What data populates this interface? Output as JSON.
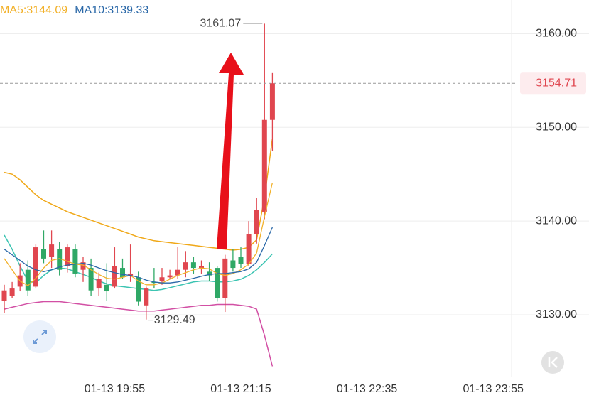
{
  "chart_data": {
    "type": "candlestick",
    "categories": [
      null,
      null,
      null,
      null,
      null,
      null,
      null,
      null,
      null,
      null,
      null,
      null,
      null,
      null,
      "01-13 19:55",
      null,
      null,
      null,
      null,
      null,
      null,
      null,
      null,
      null,
      null,
      null,
      null,
      null,
      null,
      null,
      "01-13 21:15",
      null,
      null,
      null,
      null,
      null,
      null,
      null,
      null,
      null,
      null,
      null,
      null,
      null,
      null,
      null,
      "01-13 22:35",
      null,
      null,
      null,
      null,
      null,
      null,
      null,
      null,
      null,
      null,
      null,
      null,
      null,
      null,
      null,
      "01-13 23:55",
      null
    ],
    "open": [
      3131.5,
      3132.0,
      3133.0,
      3134.8,
      3133.0,
      3137.0,
      3136.2,
      3137.0,
      3135.2,
      3137.0,
      3134.8,
      3135.0,
      3132.8,
      3133.2,
      3133.0,
      3135.0,
      3134.2,
      3134.0,
      3131.0,
      3133.5,
      3133.6,
      3134.0,
      3134.2,
      3134.8,
      3135.6,
      3135.0,
      3134.6,
      3135.0,
      3131.8,
      3135.8,
      3136.2,
      3135.4,
      3138.6,
      3141.0,
      3150.8,
      null,
      null,
      null,
      null,
      null,
      null,
      null,
      null,
      null,
      null,
      null,
      null,
      null,
      null,
      null,
      null,
      null,
      null,
      null,
      null,
      null,
      null,
      null,
      null,
      null,
      null,
      null,
      null,
      null
    ],
    "high": [
      3133.2,
      3133.5,
      3135.5,
      3135.8,
      3137.5,
      3139.0,
      3139.0,
      3137.8,
      3137.5,
      3137.5,
      3136.2,
      3136.0,
      3134.5,
      3135.5,
      3137.2,
      3136.0,
      3137.5,
      3134.6,
      3133.0,
      3135.0,
      3135.0,
      3134.8,
      3137.2,
      3136.8,
      3136.2,
      3135.8,
      3135.6,
      3135.2,
      3136.4,
      3137.0,
      3137.2,
      3140.0,
      3142.5,
      3161.07,
      3155.8,
      null,
      null,
      null,
      null,
      null,
      null,
      null,
      null,
      null,
      null,
      null,
      null,
      null,
      null,
      null,
      null,
      null,
      null,
      null,
      null,
      null,
      null,
      null,
      null,
      null,
      null,
      null,
      null,
      null
    ],
    "low": [
      3130.2,
      3131.8,
      3132.5,
      3132.0,
      3132.8,
      3135.5,
      3135.0,
      3134.2,
      3134.5,
      3134.0,
      3133.5,
      3132.0,
      3132.0,
      3131.5,
      3132.8,
      3133.8,
      3133.5,
      3131.0,
      3129.49,
      3132.8,
      3133.2,
      3133.8,
      3133.8,
      3134.0,
      3134.4,
      3134.4,
      3133.6,
      3131.4,
      3130.3,
      3134.6,
      3135.0,
      3135.2,
      3137.6,
      3140.2,
      3147.5,
      null,
      null,
      null,
      null,
      null,
      null,
      null,
      null,
      null,
      null,
      null,
      null,
      null,
      null,
      null,
      null,
      null,
      null,
      null,
      null,
      null,
      null,
      null,
      null,
      null,
      null,
      null,
      null,
      null
    ],
    "close": [
      3132.6,
      3132.8,
      3134.2,
      3132.6,
      3137.2,
      3136.0,
      3137.5,
      3134.8,
      3137.2,
      3134.4,
      3135.6,
      3132.6,
      3133.8,
      3132.5,
      3135.2,
      3134.0,
      3134.4,
      3131.4,
      3132.8,
      3133.4,
      3134.0,
      3134.2,
      3134.8,
      3135.6,
      3135.0,
      3135.2,
      3134.2,
      3131.8,
      3136.0,
      3135.0,
      3135.4,
      3138.6,
      3141.2,
      3150.8,
      3154.71,
      null,
      null,
      null,
      null,
      null,
      null,
      null,
      null,
      null,
      null,
      null,
      null,
      null,
      null,
      null,
      null,
      null,
      null,
      null,
      null,
      null,
      null,
      null,
      null,
      null,
      null,
      null,
      null,
      null
    ],
    "up_color": "#e0464f",
    "down_color": "#2fa866",
    "series": [
      {
        "name": "MA5:3144.09",
        "color": "#f2b12a",
        "values": [
          3136.0,
          3134.8,
          3133.6,
          3133.1,
          3133.9,
          3135.0,
          3135.8,
          3136.0,
          3135.7,
          3135.4,
          3135.3,
          3134.8,
          3134.3,
          3133.9,
          3133.8,
          3134.0,
          3134.2,
          3133.6,
          3133.2,
          3133.2,
          3133.4,
          3133.8,
          3134.2,
          3134.5,
          3134.8,
          3135.0,
          3134.9,
          3134.4,
          3134.2,
          3134.4,
          3134.8,
          3135.4,
          3136.6,
          3140.5,
          3144.09,
          null,
          null,
          null,
          null,
          null,
          null,
          null,
          null,
          null,
          null,
          null,
          null,
          null,
          null,
          null,
          null,
          null,
          null,
          null,
          null,
          null,
          null,
          null,
          null,
          null,
          null,
          null,
          null,
          null
        ]
      },
      {
        "name": "MA10:3139.33",
        "color": "#2a68a8",
        "values": [
          3137.0,
          3136.4,
          3135.8,
          3135.2,
          3134.8,
          3134.6,
          3134.8,
          3135.1,
          3135.3,
          3135.4,
          3135.5,
          3135.3,
          3135.0,
          3134.7,
          3134.5,
          3134.3,
          3134.2,
          3134.0,
          3133.7,
          3133.5,
          3133.4,
          3133.4,
          3133.5,
          3133.7,
          3133.9,
          3134.1,
          3134.3,
          3134.4,
          3134.4,
          3134.5,
          3134.6,
          3134.9,
          3135.6,
          3137.4,
          3139.33,
          null,
          null,
          null,
          null,
          null,
          null,
          null,
          null,
          null,
          null,
          null,
          null,
          null,
          null,
          null,
          null,
          null,
          null,
          null,
          null,
          null,
          null,
          null,
          null,
          null,
          null,
          null,
          null,
          null
        ]
      }
    ],
    "bands": [
      {
        "color": "#f0a818",
        "values": [
          3145.2,
          3145.0,
          3144.4,
          3143.6,
          3142.8,
          3142.2,
          3141.8,
          3141.4,
          3141.0,
          3140.7,
          3140.4,
          3140.1,
          3139.8,
          3139.5,
          3139.2,
          3138.9,
          3138.6,
          3138.3,
          3138.1,
          3137.9,
          3137.8,
          3137.7,
          3137.6,
          3137.5,
          3137.4,
          3137.3,
          3137.2,
          3137.1,
          3137.0,
          3136.9,
          3137.0,
          3137.2,
          3138.0,
          3142.5,
          3148.8,
          null,
          null,
          null,
          null,
          null,
          null,
          null,
          null,
          null,
          null,
          null,
          null,
          null,
          null,
          null,
          null,
          null,
          null,
          null,
          null,
          null,
          null,
          null,
          null,
          null,
          null,
          null,
          null,
          null
        ]
      },
      {
        "color": "#3cc4b2",
        "values": [
          3138.5,
          3137.0,
          3135.2,
          3133.6,
          3133.4,
          3134.2,
          3134.8,
          3135.0,
          3134.9,
          3134.6,
          3134.3,
          3134.0,
          3133.6,
          3133.3,
          3133.1,
          3133.0,
          3132.9,
          3132.8,
          3132.7,
          3132.6,
          3132.7,
          3132.9,
          3133.1,
          3133.3,
          3133.5,
          3133.6,
          3133.6,
          3133.5,
          3133.5,
          3133.6,
          3133.8,
          3134.2,
          3134.8,
          3135.6,
          3136.5,
          null,
          null,
          null,
          null,
          null,
          null,
          null,
          null,
          null,
          null,
          null,
          null,
          null,
          null,
          null,
          null,
          null,
          null,
          null,
          null,
          null,
          null,
          null,
          null,
          null,
          null,
          null,
          null,
          null
        ]
      },
      {
        "color": "#d24fa4",
        "values": [
          3130.6,
          3130.8,
          3131.0,
          3131.2,
          3131.3,
          3131.4,
          3131.4,
          3131.4,
          3131.3,
          3131.2,
          3131.1,
          3131.0,
          3130.9,
          3130.8,
          3130.7,
          3130.6,
          3130.5,
          3130.4,
          3130.4,
          3130.4,
          3130.5,
          3130.6,
          3130.7,
          3130.8,
          3130.9,
          3131.0,
          3131.0,
          3131.1,
          3131.1,
          3131.1,
          3131.0,
          3130.9,
          3130.6,
          3127.8,
          3124.5,
          null,
          null,
          null,
          null,
          null,
          null,
          null,
          null,
          null,
          null,
          null,
          null,
          null,
          null,
          null,
          null,
          null,
          null,
          null,
          null,
          null,
          null,
          null,
          null,
          null,
          null,
          null,
          null,
          null
        ]
      }
    ],
    "ylim": [
      3123.4,
      3163.6
    ],
    "yticks": [
      {
        "value": 3130,
        "label": "3130.00"
      },
      {
        "value": 3140,
        "label": "3140.00"
      },
      {
        "value": 3150,
        "label": "3150.00"
      },
      {
        "value": 3160,
        "label": "3160.00"
      }
    ],
    "grid": true
  }
}
